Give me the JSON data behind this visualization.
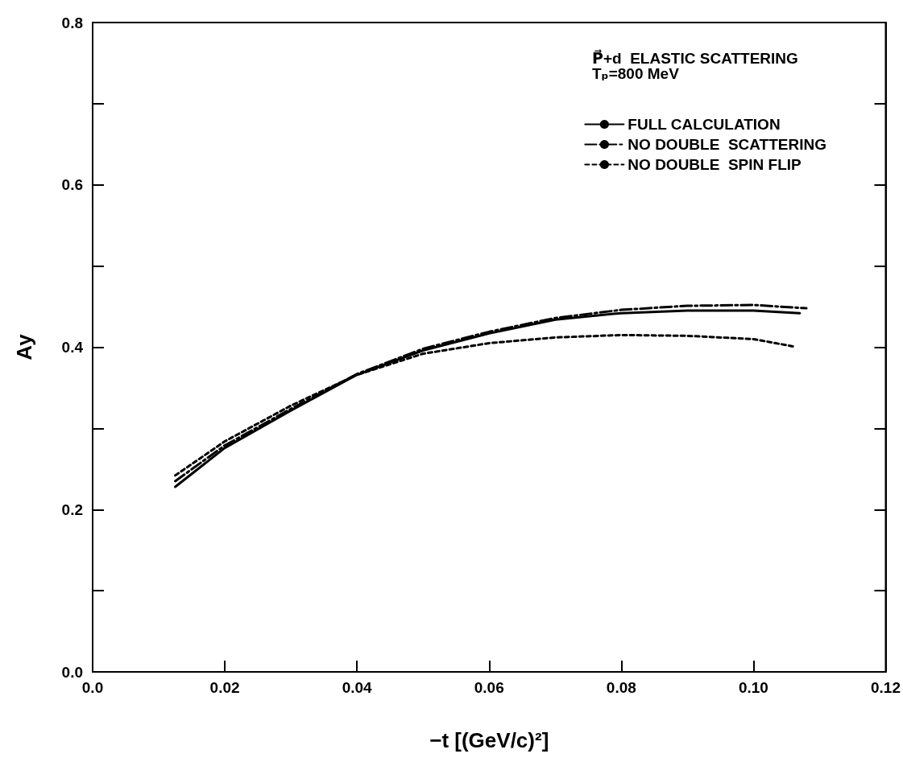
{
  "chart_data": {
    "type": "line",
    "title": "P⃗+d  ELASTIC SCATTERING",
    "subtitle": "Tₚ=800 MeV",
    "xlabel": "−t [(GeV/c)²]",
    "ylabel": "Ay",
    "x": [
      0.0125,
      0.02,
      0.03,
      0.04,
      0.05,
      0.06,
      0.07,
      0.08,
      0.09,
      0.1,
      0.107
    ],
    "series": [
      {
        "name": "FULL CALCULATION",
        "color": "#000000",
        "line_style": "solid",
        "values": [
          0.228,
          0.276,
          0.322,
          0.366,
          0.396,
          0.417,
          0.434,
          0.442,
          0.445,
          0.445,
          0.442
        ]
      },
      {
        "name": "NO DOUBLE  SCATTERING",
        "color": "#000000",
        "line_style": "dashed",
        "x": [
          0.0125,
          0.02,
          0.03,
          0.04,
          0.05,
          0.06,
          0.07,
          0.08,
          0.09,
          0.1,
          0.108
        ],
        "values": [
          0.235,
          0.279,
          0.324,
          0.367,
          0.398,
          0.419,
          0.436,
          0.446,
          0.451,
          0.452,
          0.448
        ]
      },
      {
        "name": "NO DOUBLE  SPIN FLIP",
        "color": "#000000",
        "line_style": "dotted",
        "x": [
          0.0125,
          0.02,
          0.03,
          0.04,
          0.05,
          0.06,
          0.07,
          0.08,
          0.09,
          0.1,
          0.106
        ],
        "values": [
          0.242,
          0.284,
          0.328,
          0.366,
          0.392,
          0.405,
          0.412,
          0.415,
          0.414,
          0.41,
          0.401
        ]
      }
    ],
    "xlim": [
      0,
      0.12
    ],
    "xticks": [
      {
        "value": 0,
        "label": "0.0"
      },
      0.02,
      0.04,
      0.06,
      0.08,
      {
        "value": 0.1,
        "label": "0.10"
      },
      0.12
    ],
    "ylim": [
      0,
      0.8
    ],
    "yticks": [
      {
        "value": 0,
        "label": "0.0"
      },
      {
        "value": 0.1,
        "label": null
      },
      0.2,
      {
        "value": 0.3,
        "label": null
      },
      0.4,
      {
        "value": 0.5,
        "label": null
      },
      0.6,
      {
        "value": 0.7,
        "label": null
      },
      0.8
    ],
    "grid": false,
    "legend": "top right",
    "marker": "none"
  }
}
